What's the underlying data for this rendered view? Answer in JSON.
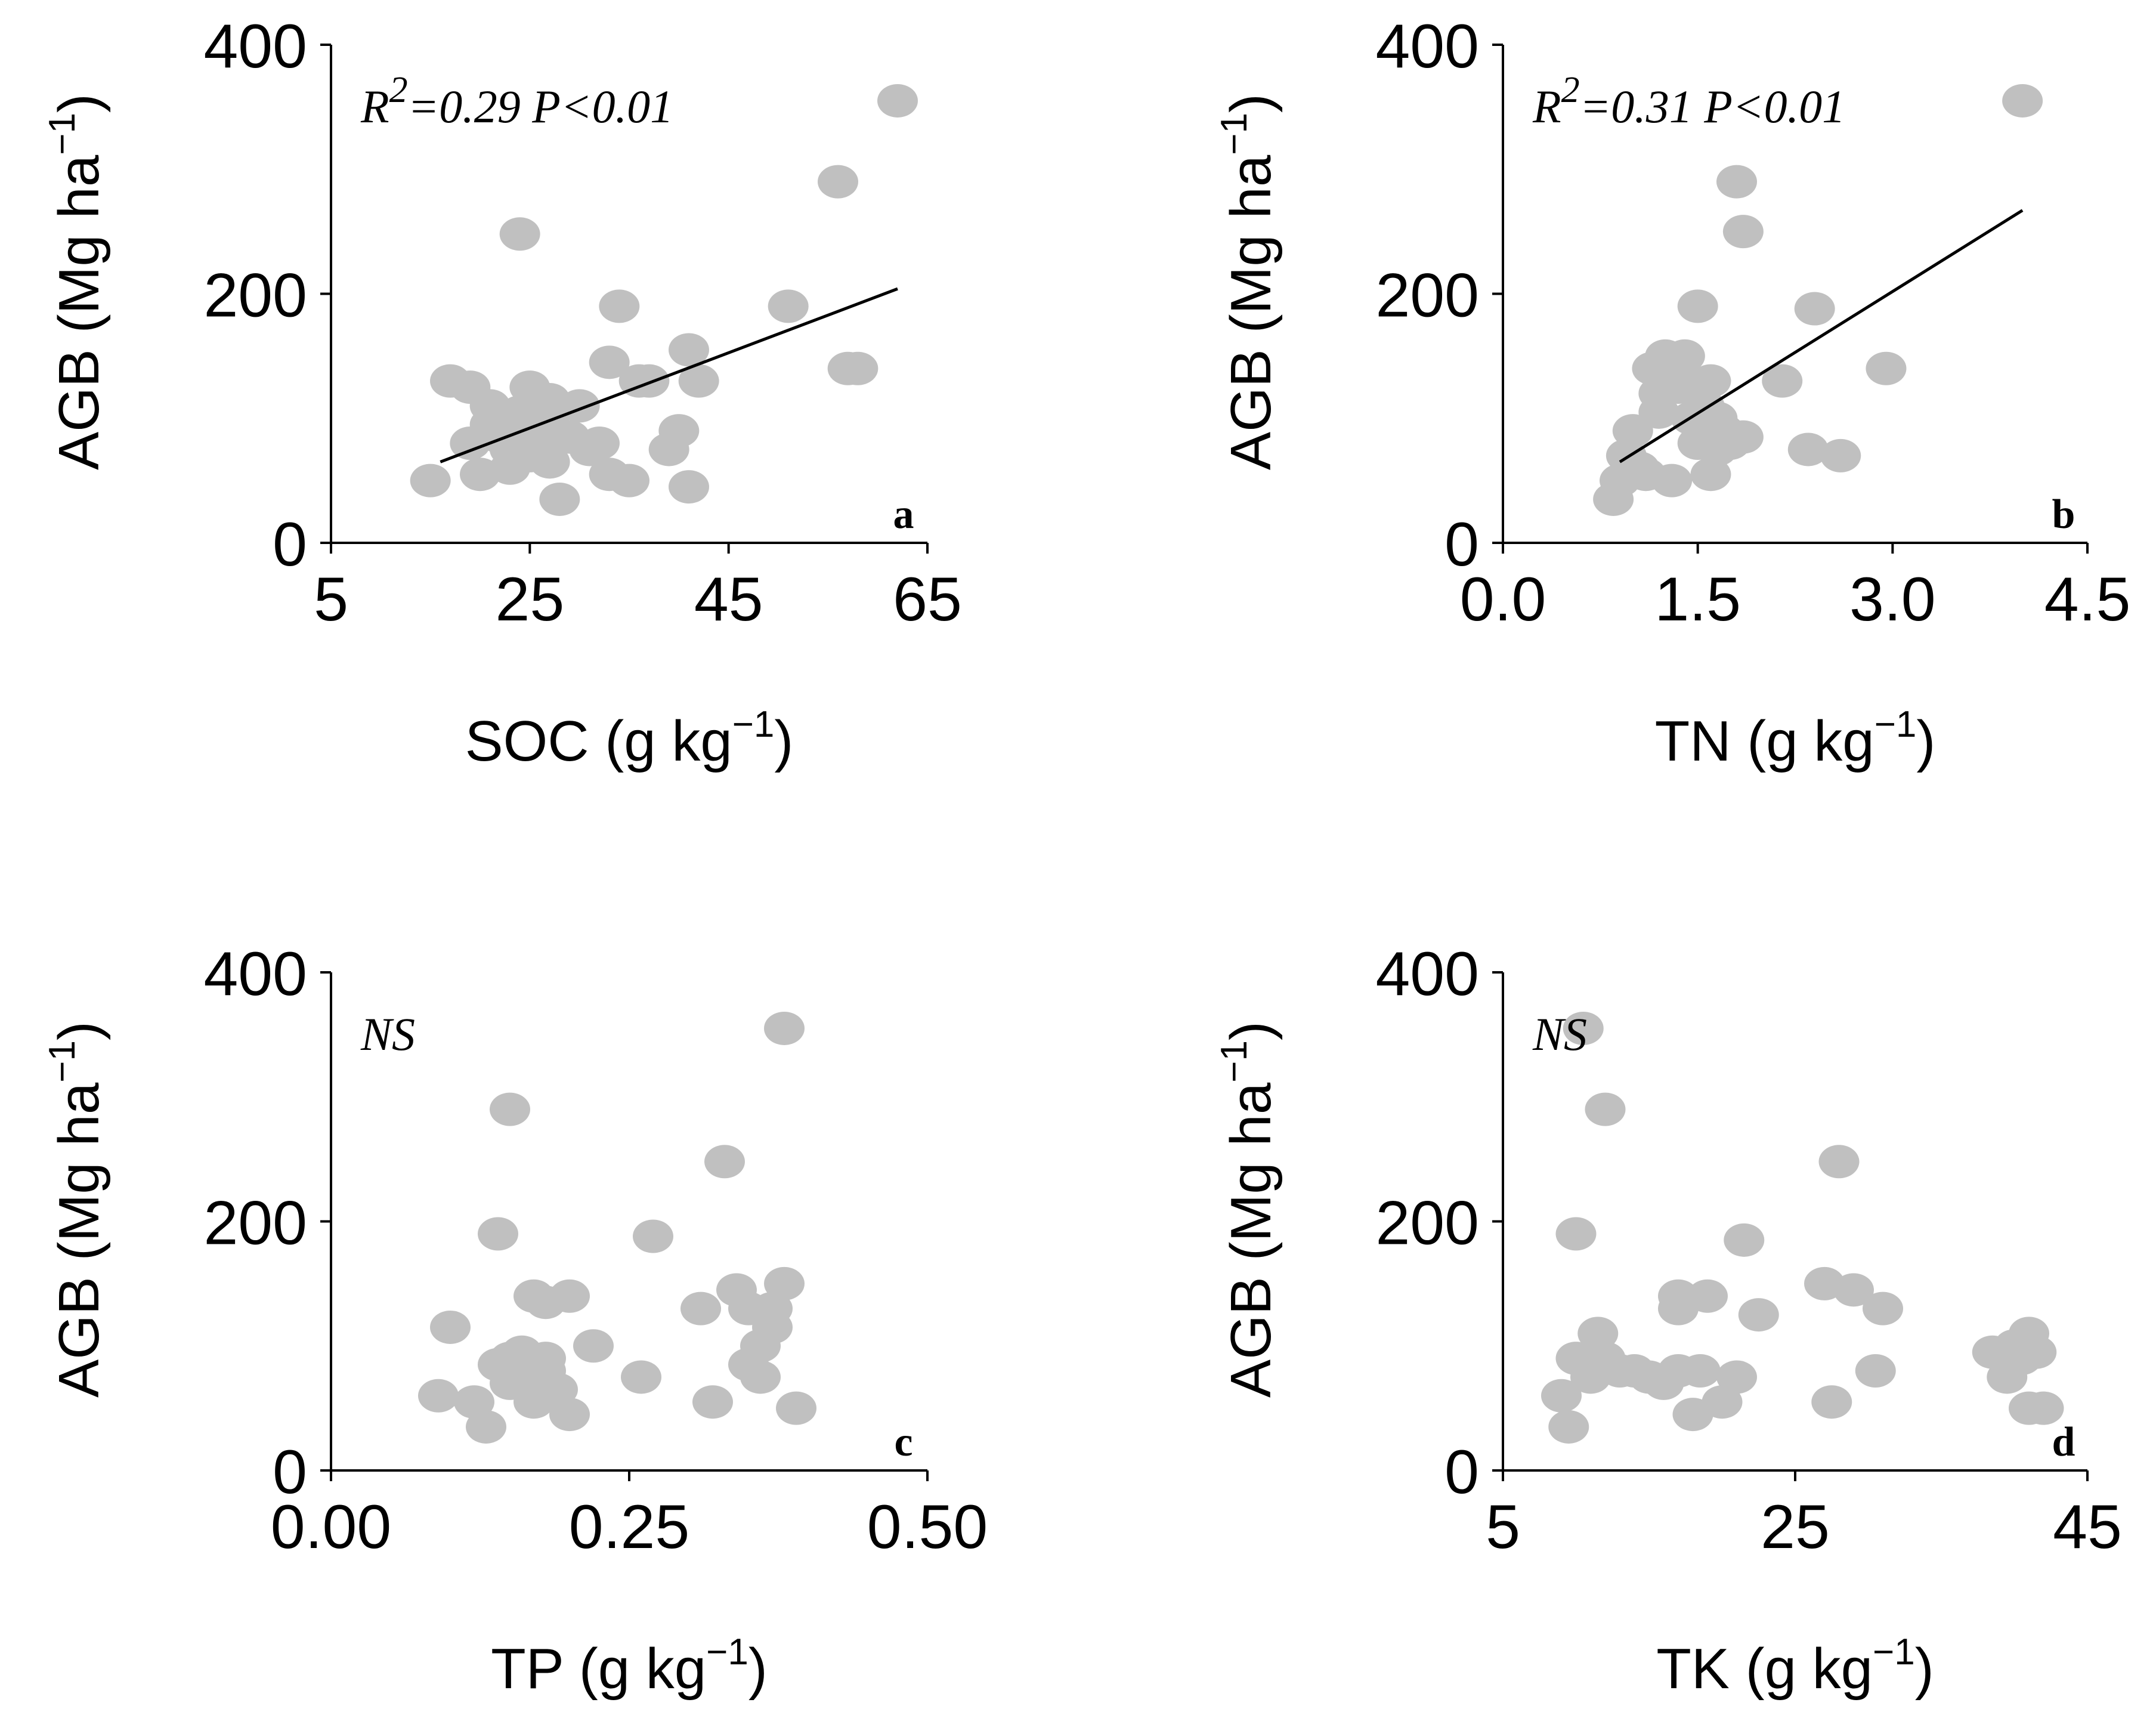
{
  "chart_data": [
    {
      "type": "scatter",
      "panel_label": "a",
      "annotation": {
        "r_label": "R",
        "r_sup": "2",
        "text": "=0.29 P<0.01"
      },
      "xlabel": {
        "text": "SOC (g kg",
        "sup": "−1",
        "close": ")"
      },
      "ylabel": {
        "text": "AGB (Mg ha",
        "sup": "−1",
        "close": ")"
      },
      "xlim": [
        5,
        65
      ],
      "ylim": [
        0,
        400
      ],
      "xticks": [
        5,
        25,
        45,
        65
      ],
      "xtick_labels": [
        "5",
        "25",
        "45",
        "65"
      ],
      "yticks": [
        0,
        200,
        400
      ],
      "ytick_labels": [
        "0",
        "200",
        "400"
      ],
      "fit": {
        "x": [
          16,
          62
        ],
        "y": [
          65,
          204
        ]
      },
      "x": [
        15,
        17,
        19,
        19,
        20,
        21,
        21,
        22,
        22,
        23,
        23,
        24,
        24,
        25,
        25,
        25,
        26,
        26,
        27,
        27,
        27,
        28,
        29,
        30,
        31,
        32,
        33,
        33,
        34,
        35,
        36,
        37,
        39,
        40,
        41,
        41,
        42,
        51,
        56,
        57,
        58,
        62
      ],
      "y": [
        50,
        130,
        125,
        80,
        55,
        95,
        110,
        100,
        85,
        75,
        60,
        105,
        248,
        90,
        70,
        125,
        110,
        85,
        95,
        115,
        65,
        35,
        85,
        110,
        75,
        80,
        55,
        145,
        190,
        50,
        130,
        130,
        75,
        90,
        45,
        155,
        130,
        190,
        290,
        140,
        140,
        355
      ]
    },
    {
      "type": "scatter",
      "panel_label": "b",
      "annotation": {
        "r_label": "R",
        "r_sup": "2",
        "text": "=0.31 P<0.01"
      },
      "xlabel": {
        "text": "TN (g kg",
        "sup": "−1",
        "close": ")"
      },
      "ylabel": {
        "text": "AGB (Mg ha",
        "sup": "−1",
        "close": ")"
      },
      "xlim": [
        0,
        4.5
      ],
      "ylim": [
        0,
        400
      ],
      "xticks": [
        0,
        1.5,
        3.0,
        4.5
      ],
      "xtick_labels": [
        "0.0",
        "1.5",
        "3.0",
        "4.5"
      ],
      "yticks": [
        0,
        200,
        400
      ],
      "ytick_labels": [
        "0",
        "200",
        "400"
      ],
      "fit": {
        "x": [
          0.9,
          4.0
        ],
        "y": [
          65,
          267
        ]
      },
      "x": [
        0.85,
        0.9,
        0.95,
        1.0,
        1.05,
        1.1,
        1.15,
        1.2,
        1.2,
        1.25,
        1.3,
        1.35,
        1.4,
        1.4,
        1.45,
        1.5,
        1.5,
        1.55,
        1.6,
        1.6,
        1.65,
        1.65,
        1.7,
        1.75,
        1.8,
        1.85,
        1.85,
        2.15,
        2.35,
        2.4,
        2.6,
        2.95,
        4.0
      ],
      "y": [
        35,
        50,
        70,
        90,
        60,
        55,
        140,
        120,
        105,
        150,
        50,
        125,
        130,
        150,
        100,
        80,
        190,
        110,
        55,
        130,
        100,
        75,
        90,
        80,
        290,
        250,
        85,
        130,
        75,
        188,
        70,
        140,
        355
      ]
    },
    {
      "type": "scatter",
      "panel_label": "c",
      "annotation": {
        "r_label": "",
        "r_sup": "",
        "text": "NS"
      },
      "xlabel": {
        "text": "TP (g kg",
        "sup": "−1",
        "close": ")"
      },
      "ylabel": {
        "text": "AGB (Mg ha",
        "sup": "−1",
        "close": ")"
      },
      "xlim": [
        0,
        0.5
      ],
      "ylim": [
        0,
        400
      ],
      "xticks": [
        0,
        0.25,
        0.5
      ],
      "xtick_labels": [
        "0.00",
        "0.25",
        "0.50"
      ],
      "yticks": [
        0,
        200,
        400
      ],
      "ytick_labels": [
        "0",
        "200",
        "400"
      ],
      "fit": null,
      "x": [
        0.09,
        0.1,
        0.12,
        0.13,
        0.14,
        0.14,
        0.15,
        0.15,
        0.15,
        0.16,
        0.16,
        0.17,
        0.17,
        0.18,
        0.18,
        0.18,
        0.19,
        0.2,
        0.2,
        0.22,
        0.26,
        0.27,
        0.31,
        0.32,
        0.33,
        0.34,
        0.35,
        0.35,
        0.36,
        0.36,
        0.37,
        0.37,
        0.38,
        0.38,
        0.39
      ],
      "y": [
        60,
        115,
        55,
        35,
        190,
        85,
        290,
        90,
        70,
        75,
        95,
        140,
        55,
        90,
        135,
        80,
        65,
        140,
        45,
        100,
        75,
        188,
        130,
        55,
        248,
        145,
        130,
        85,
        75,
        100,
        115,
        130,
        355,
        150,
        50
      ]
    },
    {
      "type": "scatter",
      "panel_label": "d",
      "annotation": {
        "r_label": "",
        "r_sup": "",
        "text": "NS"
      },
      "xlabel": {
        "text": "TK (g kg",
        "sup": "−1",
        "close": ")"
      },
      "ylabel": {
        "text": "AGB (Mg ha",
        "sup": "−1",
        "close": ")"
      },
      "xlim": [
        5,
        45
      ],
      "ylim": [
        0,
        400
      ],
      "xticks": [
        5,
        25,
        45
      ],
      "xtick_labels": [
        "5",
        "25",
        "45"
      ],
      "yticks": [
        0,
        200,
        400
      ],
      "ytick_labels": [
        "0",
        "200",
        "400"
      ],
      "fit": null,
      "x": [
        9,
        9.5,
        10,
        10,
        10.5,
        11,
        11.5,
        12,
        12,
        13,
        14,
        15,
        16,
        17,
        17,
        17,
        18,
        18.5,
        19,
        20,
        21,
        21.5,
        22.5,
        27,
        27.5,
        28,
        29,
        30.5,
        31,
        38.5,
        39.5,
        40,
        40.5,
        41,
        41,
        41.5,
        42
      ],
      "y": [
        60,
        35,
        90,
        190,
        355,
        75,
        110,
        290,
        90,
        80,
        80,
        75,
        70,
        130,
        80,
        140,
        45,
        80,
        140,
        55,
        75,
        185,
        125,
        150,
        55,
        248,
        145,
        80,
        130,
        95,
        75,
        100,
        90,
        50,
        110,
        95,
        50
      ]
    }
  ]
}
